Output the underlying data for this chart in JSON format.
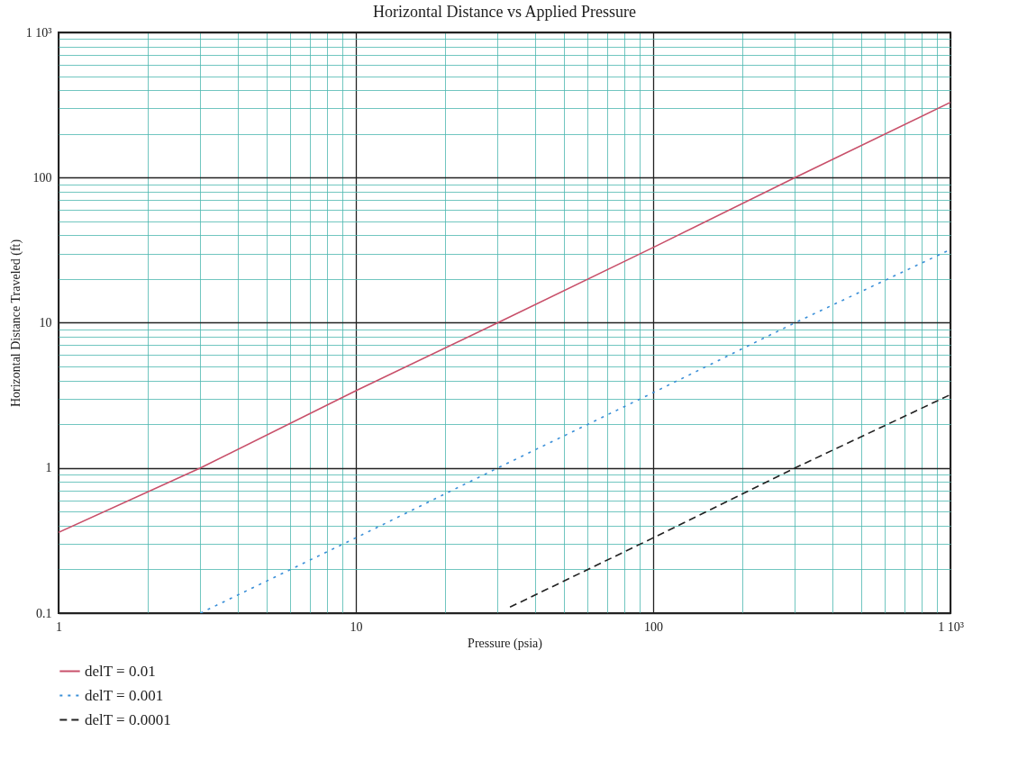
{
  "chart_data": {
    "type": "line",
    "title": "Horizontal Distance vs Applied Pressure",
    "xlabel": "Pressure (psia)",
    "ylabel": "Horizontal Distance Traveled (ft)",
    "log": "xy",
    "grid": true,
    "legend": "bottom",
    "marker": "none",
    "xlim": [
      1,
      1000
    ],
    "ylim": [
      0.1,
      1000
    ],
    "xticks": [
      1,
      {
        "value": 2,
        "label": null
      },
      {
        "value": 3,
        "label": null
      },
      {
        "value": 4,
        "label": null
      },
      {
        "value": 5,
        "label": null
      },
      {
        "value": 6,
        "label": null
      },
      {
        "value": 7,
        "label": null
      },
      {
        "value": 8,
        "label": null
      },
      {
        "value": 9,
        "label": null
      },
      10,
      {
        "value": 20,
        "label": null
      },
      {
        "value": 30,
        "label": null
      },
      {
        "value": 40,
        "label": null
      },
      {
        "value": 50,
        "label": null
      },
      {
        "value": 60,
        "label": null
      },
      {
        "value": 70,
        "label": null
      },
      {
        "value": 80,
        "label": null
      },
      {
        "value": 90,
        "label": null
      },
      100,
      {
        "value": 200,
        "label": null
      },
      {
        "value": 300,
        "label": null
      },
      {
        "value": 400,
        "label": null
      },
      {
        "value": 500,
        "label": null
      },
      {
        "value": 600,
        "label": null
      },
      {
        "value": 700,
        "label": null
      },
      {
        "value": 800,
        "label": null
      },
      {
        "value": 900,
        "label": null
      },
      {
        "value": 1000,
        "label": "1 10³"
      }
    ],
    "yticks": [
      0.1,
      {
        "value": 0.2,
        "label": null
      },
      {
        "value": 0.3,
        "label": null
      },
      {
        "value": 0.4,
        "label": null
      },
      {
        "value": 0.5,
        "label": null
      },
      {
        "value": 0.6,
        "label": null
      },
      {
        "value": 0.7,
        "label": null
      },
      {
        "value": 0.8,
        "label": null
      },
      {
        "value": 0.9,
        "label": null
      },
      1,
      {
        "value": 2,
        "label": null
      },
      {
        "value": 3,
        "label": null
      },
      {
        "value": 4,
        "label": null
      },
      {
        "value": 5,
        "label": null
      },
      {
        "value": 6,
        "label": null
      },
      {
        "value": 7,
        "label": null
      },
      {
        "value": 8,
        "label": null
      },
      {
        "value": 9,
        "label": null
      },
      10,
      {
        "value": 20,
        "label": null
      },
      {
        "value": 30,
        "label": null
      },
      {
        "value": 40,
        "label": null
      },
      {
        "value": 50,
        "label": null
      },
      {
        "value": 60,
        "label": null
      },
      {
        "value": 70,
        "label": null
      },
      {
        "value": 80,
        "label": null
      },
      {
        "value": 90,
        "label": null
      },
      100,
      {
        "value": 200,
        "label": null
      },
      {
        "value": 300,
        "label": null
      },
      {
        "value": 400,
        "label": null
      },
      {
        "value": 500,
        "label": null
      },
      {
        "value": 600,
        "label": null
      },
      {
        "value": 700,
        "label": null
      },
      {
        "value": 800,
        "label": null
      },
      {
        "value": 900,
        "label": null
      },
      {
        "value": 1000,
        "label": "1 10³"
      }
    ],
    "series": [
      {
        "name": "delT = 0.01",
        "color": "#c8506a",
        "line_style": "solid",
        "x": [
          1,
          3,
          10,
          30,
          100,
          300,
          1000
        ],
        "values": [
          0.36,
          1.0,
          3.4,
          10,
          33,
          100,
          330
        ]
      },
      {
        "name": "delT = 0.001",
        "color": "#3a8fd8",
        "line_style": "dotted",
        "x": [
          3,
          10,
          30,
          100,
          300,
          1000
        ],
        "values": [
          0.1,
          0.33,
          1.0,
          3.3,
          10,
          32
        ]
      },
      {
        "name": "delT = 0.0001",
        "color": "#222222",
        "line_style": "dashed",
        "x": [
          33,
          100,
          300,
          1000
        ],
        "values": [
          0.11,
          0.33,
          1.0,
          3.2
        ]
      }
    ]
  }
}
